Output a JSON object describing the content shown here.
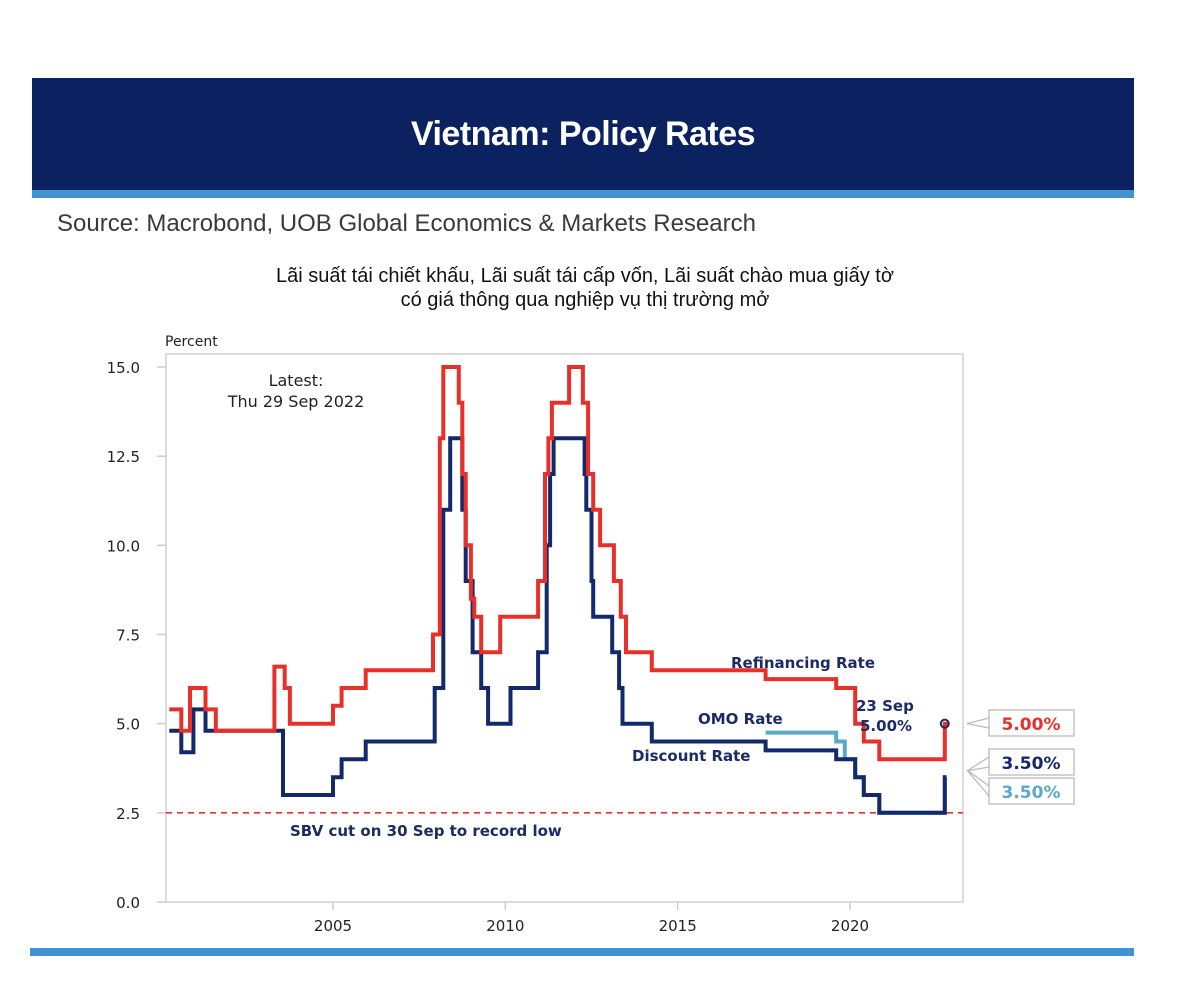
{
  "header": {
    "title": "Vietnam: Policy Rates",
    "source": "Source: Macrobond, UOB Global Economics & Markets Research",
    "subtitle_line1": "Lãi suất tái chiết khấu, Lãi suất tái cấp vốn, Lãi suất chào mua giấy tờ",
    "subtitle_line2": "có giá thông qua nghiệp vụ thị trường mở"
  },
  "colors": {
    "header_bg": "#0c2260",
    "stripe": "#3f94d1",
    "refinancing": "#e8302a",
    "discount": "#14296b",
    "omo": "#5aa9c9",
    "annotation_text": "#1c2a66"
  },
  "chart_data": {
    "type": "line",
    "step": true,
    "ylabel": "Percent",
    "ylim": [
      0,
      15
    ],
    "xlim": [
      2000.15,
      2023.5
    ],
    "yticks": [
      "0.0",
      "2.5",
      "5.0",
      "7.5",
      "10.0",
      "12.5",
      "15.0"
    ],
    "ytick_values": [
      0,
      2.5,
      5,
      7.5,
      10,
      12.5,
      15
    ],
    "xticks": [
      "2005",
      "2010",
      "2015",
      "2020"
    ],
    "xtick_values": [
      2005,
      2010,
      2015,
      2020
    ],
    "grid": false,
    "latest_note_line1": "Latest:",
    "latest_note_line2": "Thu 29 Sep 2022",
    "reference_line": {
      "y": 2.5,
      "style": "dashed",
      "label": "SBV cut on 30 Sep to record low"
    },
    "series": [
      {
        "name": "Refinancing Rate",
        "label": "Refinancing Rate",
        "end_value_label": "5.00%",
        "points": [
          [
            2000.25,
            5.4
          ],
          [
            2000.6,
            4.8
          ],
          [
            2000.85,
            6.0
          ],
          [
            2001.3,
            5.4
          ],
          [
            2001.6,
            4.8
          ],
          [
            2003.3,
            6.6
          ],
          [
            2003.6,
            6.0
          ],
          [
            2003.75,
            5.0
          ],
          [
            2005.0,
            5.5
          ],
          [
            2005.25,
            6.0
          ],
          [
            2005.95,
            6.5
          ],
          [
            2007.9,
            7.5
          ],
          [
            2008.1,
            13.0
          ],
          [
            2008.2,
            15.0
          ],
          [
            2008.65,
            14.0
          ],
          [
            2008.75,
            12.0
          ],
          [
            2008.85,
            10.0
          ],
          [
            2009.0,
            8.5
          ],
          [
            2009.1,
            8.0
          ],
          [
            2009.3,
            7.0
          ],
          [
            2009.85,
            8.0
          ],
          [
            2010.95,
            9.0
          ],
          [
            2011.15,
            12.0
          ],
          [
            2011.25,
            13.0
          ],
          [
            2011.35,
            14.0
          ],
          [
            2011.85,
            15.0
          ],
          [
            2012.25,
            14.0
          ],
          [
            2012.4,
            12.0
          ],
          [
            2012.55,
            11.0
          ],
          [
            2012.75,
            10.0
          ],
          [
            2013.15,
            9.0
          ],
          [
            2013.35,
            8.0
          ],
          [
            2013.5,
            7.0
          ],
          [
            2014.25,
            6.5
          ],
          [
            2017.55,
            6.25
          ],
          [
            2019.6,
            6.0
          ],
          [
            2020.15,
            5.0
          ],
          [
            2020.4,
            4.5
          ],
          [
            2020.85,
            4.0
          ],
          [
            2022.75,
            5.0
          ],
          [
            2022.85,
            5.0
          ]
        ]
      },
      {
        "name": "Discount Rate",
        "label": "Discount Rate",
        "end_value_label": "3.50%",
        "points": [
          [
            2000.25,
            4.8
          ],
          [
            2000.6,
            4.2
          ],
          [
            2000.95,
            5.4
          ],
          [
            2001.3,
            4.8
          ],
          [
            2003.55,
            3.0
          ],
          [
            2005.0,
            3.5
          ],
          [
            2005.25,
            4.0
          ],
          [
            2005.95,
            4.5
          ],
          [
            2007.95,
            6.0
          ],
          [
            2008.2,
            11.0
          ],
          [
            2008.4,
            13.0
          ],
          [
            2008.75,
            11.0
          ],
          [
            2008.85,
            9.0
          ],
          [
            2009.05,
            7.0
          ],
          [
            2009.3,
            6.0
          ],
          [
            2009.5,
            5.0
          ],
          [
            2010.15,
            6.0
          ],
          [
            2010.95,
            7.0
          ],
          [
            2011.2,
            10.0
          ],
          [
            2011.3,
            12.0
          ],
          [
            2011.4,
            13.0
          ],
          [
            2012.3,
            12.0
          ],
          [
            2012.35,
            11.0
          ],
          [
            2012.5,
            9.0
          ],
          [
            2012.55,
            8.0
          ],
          [
            2013.1,
            7.0
          ],
          [
            2013.3,
            6.0
          ],
          [
            2013.4,
            5.0
          ],
          [
            2014.25,
            4.5
          ],
          [
            2017.55,
            4.25
          ],
          [
            2019.6,
            4.0
          ],
          [
            2020.15,
            3.5
          ],
          [
            2020.4,
            3.0
          ],
          [
            2020.85,
            2.5
          ],
          [
            2022.75,
            3.5
          ],
          [
            2022.8,
            3.5
          ]
        ]
      },
      {
        "name": "OMO Rate",
        "label": "OMO Rate",
        "end_value_label": "3.50%",
        "points": [
          [
            2017.55,
            4.75
          ],
          [
            2019.6,
            4.5
          ],
          [
            2019.85,
            4.0
          ],
          [
            2020.15,
            3.5
          ],
          [
            2020.4,
            3.0
          ],
          [
            2020.85,
            2.5
          ],
          [
            2022.75,
            3.5
          ],
          [
            2022.8,
            3.5
          ]
        ]
      }
    ],
    "point_annotation": {
      "line1": "23 Sep",
      "line2": "5.00%",
      "x": 2022.75,
      "y": 5.0
    }
  }
}
